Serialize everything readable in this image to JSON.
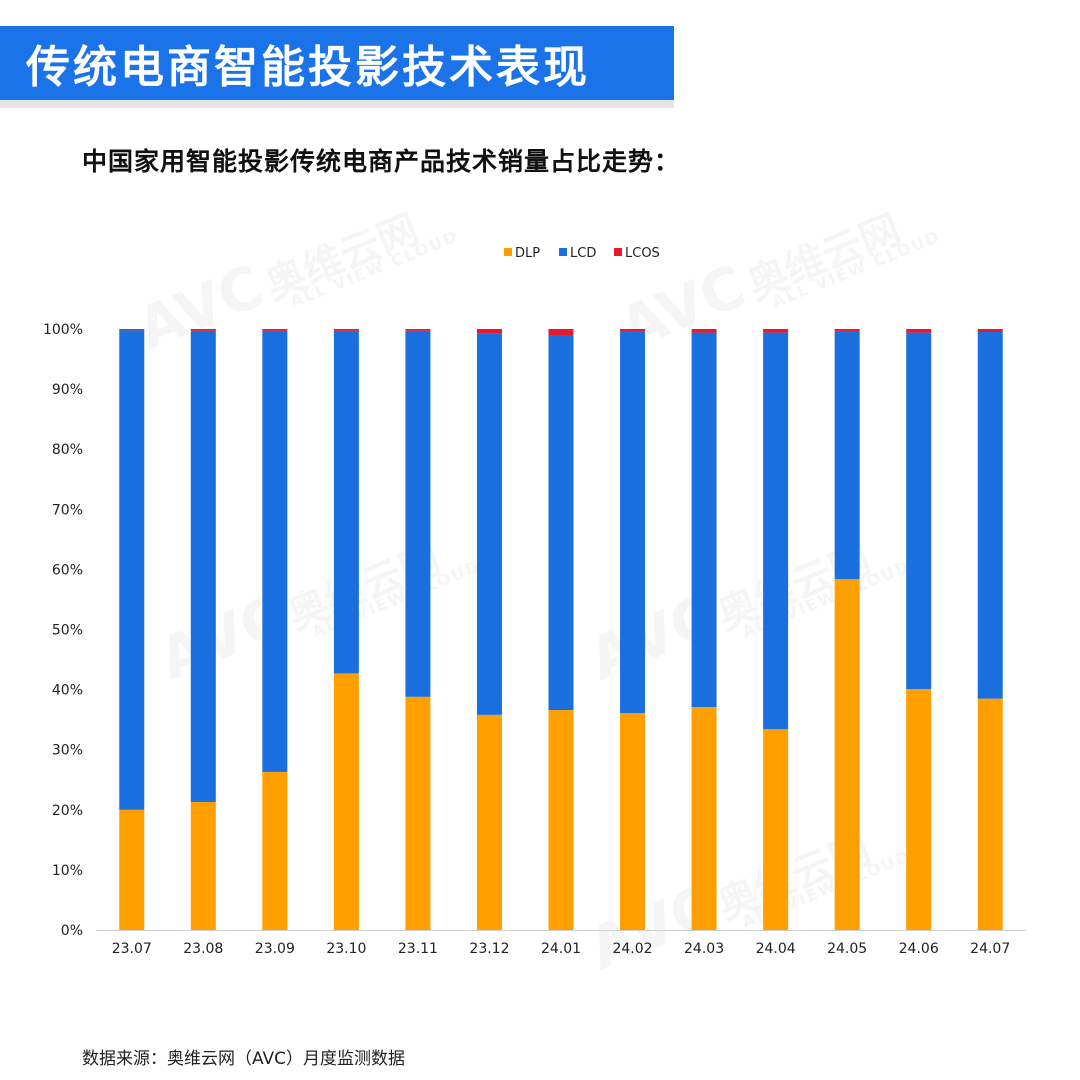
{
  "header": {
    "title": "传统电商智能投影技术表现"
  },
  "subtitle": "中国家用智能投影传统电商产品技术销量占比走势：",
  "footer": "数据来源：奥维云网（AVC）月度监测数据",
  "watermark": {
    "logo": "AVC",
    "cn": "奥维云网",
    "en": "ALL VIEW CLOUD"
  },
  "chart_data": {
    "type": "bar",
    "stacked": true,
    "categories": [
      "23.07",
      "23.08",
      "23.09",
      "23.10",
      "23.11",
      "23.12",
      "24.01",
      "24.02",
      "24.03",
      "24.04",
      "24.05",
      "24.06",
      "24.07"
    ],
    "series": [
      {
        "name": "DLP",
        "color": "#ff9f00",
        "values": [
          20.0,
          21.3,
          26.3,
          42.7,
          38.8,
          35.8,
          36.6,
          36.1,
          37.1,
          33.4,
          58.4,
          40.1,
          38.5
        ]
      },
      {
        "name": "LCD",
        "color": "#1a6fde",
        "values": [
          79.8,
          78.4,
          73.4,
          57.0,
          60.9,
          63.4,
          62.4,
          63.5,
          62.3,
          66.0,
          41.2,
          59.3,
          61.0
        ]
      },
      {
        "name": "LCOS",
        "color": "#e8192c",
        "values": [
          0.2,
          0.3,
          0.3,
          0.3,
          0.3,
          0.8,
          1.0,
          0.4,
          0.6,
          0.6,
          0.4,
          0.6,
          0.5
        ]
      }
    ],
    "ylim": [
      0,
      100
    ],
    "yticks": [
      "0%",
      "10%",
      "20%",
      "30%",
      "40%",
      "50%",
      "60%",
      "70%",
      "80%",
      "90%",
      "100%"
    ],
    "legend_position": "top",
    "grid": false
  }
}
